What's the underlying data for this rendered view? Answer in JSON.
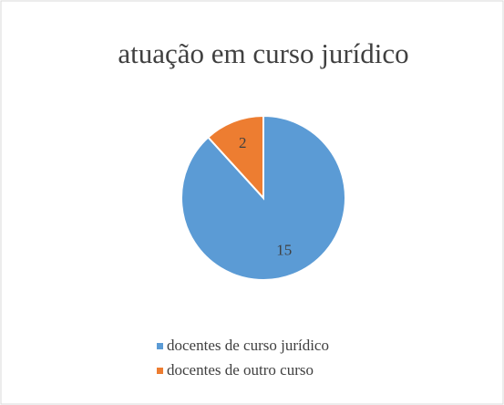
{
  "chart_data": {
    "type": "pie",
    "title": "atuação em curso jurídico",
    "categories": [
      "docentes de curso jurídico",
      "docentes de outro curso"
    ],
    "values": [
      15,
      2
    ],
    "colors": [
      "#5b9bd5",
      "#ed7d31"
    ],
    "legend": "bottom"
  }
}
